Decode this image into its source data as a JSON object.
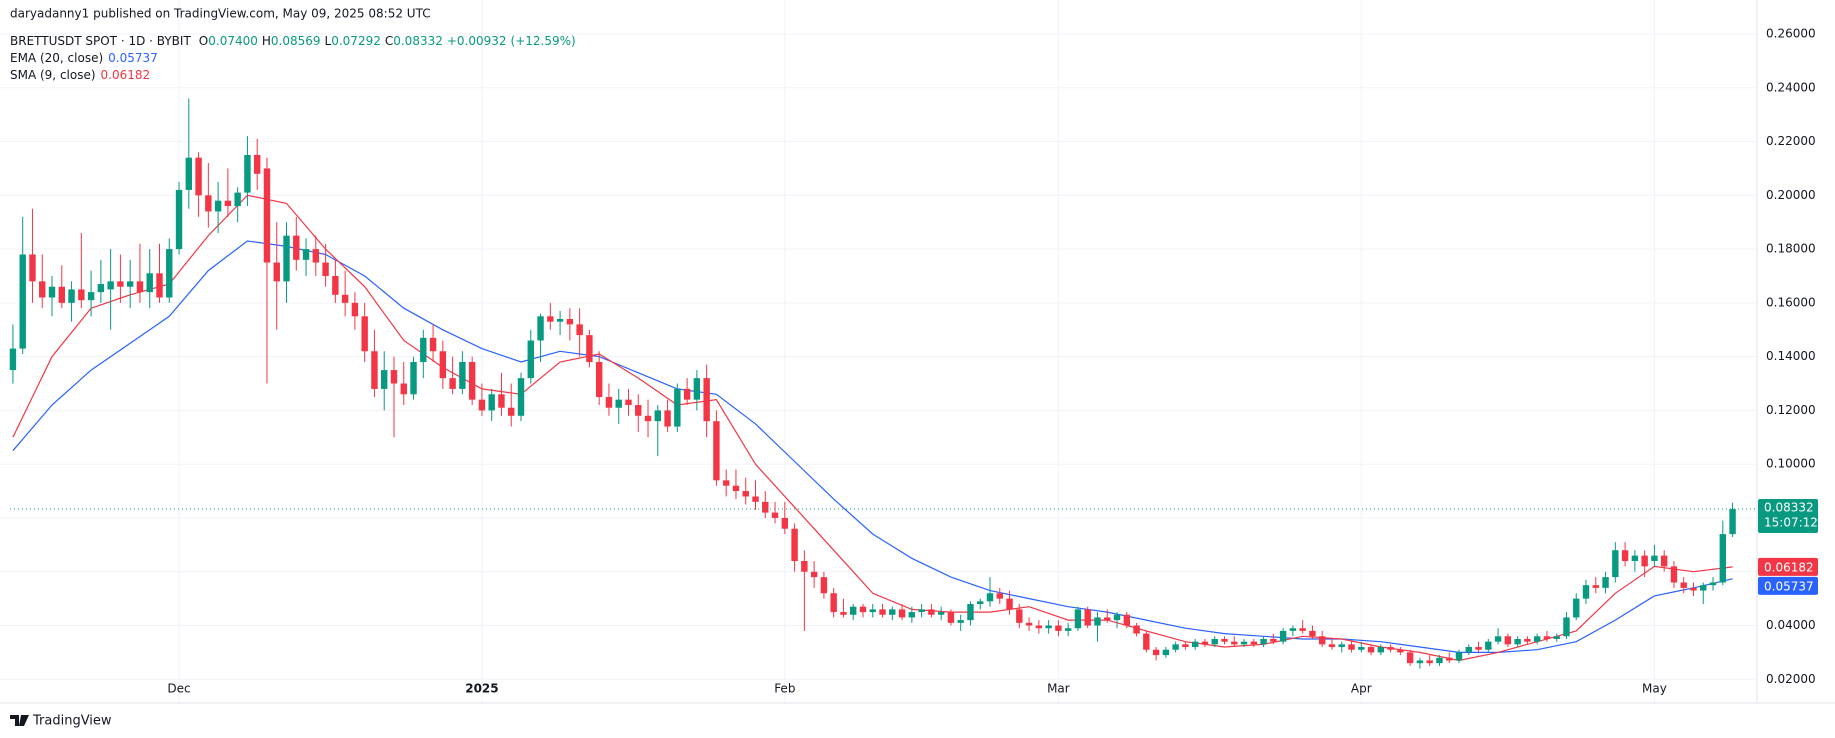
{
  "chart_data": {
    "type": "candlestick",
    "published": "daryadanny1 published on TradingView.com, May 09, 2025 08:52 UTC",
    "symbol": "BRETTUSDT SPOT · 1D · BYBIT",
    "ohlc": [
      {
        "name": "O",
        "value": 0.074,
        "label": "0.07400"
      },
      {
        "name": "H",
        "value": 0.08569,
        "label": "0.08569"
      },
      {
        "name": "L",
        "value": 0.07292,
        "label": "0.07292"
      },
      {
        "name": "C",
        "value": 0.08332,
        "label": "0.08332"
      }
    ],
    "change": {
      "value": 0.00932,
      "label": "+0.00932"
    },
    "change_pct": {
      "value": 12.59,
      "label": "(+12.59%)"
    },
    "up_color": "#089981",
    "down_color": "#f23645",
    "candles": [
      [
        0.135,
        0.152,
        0.13,
        0.143
      ],
      [
        0.143,
        0.192,
        0.141,
        0.178
      ],
      [
        0.178,
        0.195,
        0.16,
        0.168
      ],
      [
        0.168,
        0.178,
        0.158,
        0.162
      ],
      [
        0.162,
        0.17,
        0.155,
        0.166
      ],
      [
        0.166,
        0.174,
        0.158,
        0.16
      ],
      [
        0.16,
        0.168,
        0.153,
        0.165
      ],
      [
        0.165,
        0.186,
        0.158,
        0.161
      ],
      [
        0.161,
        0.172,
        0.155,
        0.164
      ],
      [
        0.164,
        0.176,
        0.16,
        0.167
      ],
      [
        0.165,
        0.18,
        0.15,
        0.168
      ],
      [
        0.168,
        0.178,
        0.16,
        0.166
      ],
      [
        0.166,
        0.176,
        0.158,
        0.168
      ],
      [
        0.168,
        0.182,
        0.16,
        0.164
      ],
      [
        0.164,
        0.18,
        0.158,
        0.171
      ],
      [
        0.171,
        0.182,
        0.16,
        0.162
      ],
      [
        0.162,
        0.184,
        0.16,
        0.18
      ],
      [
        0.18,
        0.205,
        0.178,
        0.202
      ],
      [
        0.202,
        0.236,
        0.195,
        0.214
      ],
      [
        0.214,
        0.216,
        0.192,
        0.2
      ],
      [
        0.2,
        0.212,
        0.188,
        0.194
      ],
      [
        0.194,
        0.205,
        0.186,
        0.198
      ],
      [
        0.198,
        0.21,
        0.192,
        0.196
      ],
      [
        0.196,
        0.203,
        0.19,
        0.201
      ],
      [
        0.201,
        0.222,
        0.196,
        0.215
      ],
      [
        0.215,
        0.221,
        0.202,
        0.208
      ],
      [
        0.21,
        0.214,
        0.13,
        0.175
      ],
      [
        0.175,
        0.19,
        0.15,
        0.168
      ],
      [
        0.168,
        0.19,
        0.16,
        0.185
      ],
      [
        0.185,
        0.192,
        0.172,
        0.176
      ],
      [
        0.176,
        0.184,
        0.17,
        0.18
      ],
      [
        0.18,
        0.185,
        0.17,
        0.175
      ],
      [
        0.175,
        0.182,
        0.166,
        0.17
      ],
      [
        0.17,
        0.176,
        0.16,
        0.163
      ],
      [
        0.163,
        0.172,
        0.155,
        0.16
      ],
      [
        0.16,
        0.164,
        0.15,
        0.155
      ],
      [
        0.155,
        0.16,
        0.138,
        0.142
      ],
      [
        0.142,
        0.15,
        0.125,
        0.128
      ],
      [
        0.128,
        0.142,
        0.12,
        0.135
      ],
      [
        0.135,
        0.14,
        0.11,
        0.13
      ],
      [
        0.13,
        0.138,
        0.122,
        0.126
      ],
      [
        0.126,
        0.14,
        0.124,
        0.138
      ],
      [
        0.138,
        0.15,
        0.132,
        0.147
      ],
      [
        0.147,
        0.152,
        0.138,
        0.142
      ],
      [
        0.142,
        0.146,
        0.128,
        0.132
      ],
      [
        0.132,
        0.14,
        0.126,
        0.128
      ],
      [
        0.128,
        0.142,
        0.126,
        0.138
      ],
      [
        0.138,
        0.14,
        0.122,
        0.124
      ],
      [
        0.124,
        0.13,
        0.118,
        0.12
      ],
      [
        0.12,
        0.128,
        0.116,
        0.126
      ],
      [
        0.126,
        0.134,
        0.118,
        0.121
      ],
      [
        0.121,
        0.13,
        0.114,
        0.118
      ],
      [
        0.118,
        0.134,
        0.116,
        0.132
      ],
      [
        0.132,
        0.15,
        0.13,
        0.146
      ],
      [
        0.146,
        0.156,
        0.138,
        0.155
      ],
      [
        0.155,
        0.16,
        0.15,
        0.153
      ],
      [
        0.153,
        0.157,
        0.148,
        0.154
      ],
      [
        0.154,
        0.158,
        0.146,
        0.152
      ],
      [
        0.152,
        0.158,
        0.14,
        0.148
      ],
      [
        0.148,
        0.15,
        0.136,
        0.138
      ],
      [
        0.138,
        0.142,
        0.122,
        0.125
      ],
      [
        0.125,
        0.13,
        0.118,
        0.121
      ],
      [
        0.121,
        0.128,
        0.115,
        0.124
      ],
      [
        0.124,
        0.128,
        0.118,
        0.122
      ],
      [
        0.122,
        0.126,
        0.112,
        0.118
      ],
      [
        0.118,
        0.124,
        0.11,
        0.116
      ],
      [
        0.116,
        0.122,
        0.103,
        0.12
      ],
      [
        0.12,
        0.124,
        0.112,
        0.114
      ],
      [
        0.114,
        0.13,
        0.112,
        0.128
      ],
      [
        0.128,
        0.132,
        0.122,
        0.124
      ],
      [
        0.124,
        0.135,
        0.12,
        0.132
      ],
      [
        0.132,
        0.137,
        0.11,
        0.116
      ],
      [
        0.116,
        0.12,
        0.092,
        0.094
      ],
      [
        0.094,
        0.098,
        0.088,
        0.092
      ],
      [
        0.092,
        0.098,
        0.087,
        0.09
      ],
      [
        0.09,
        0.095,
        0.085,
        0.088
      ],
      [
        0.088,
        0.094,
        0.083,
        0.086
      ],
      [
        0.086,
        0.09,
        0.08,
        0.082
      ],
      [
        0.082,
        0.086,
        0.078,
        0.08
      ],
      [
        0.08,
        0.086,
        0.074,
        0.076
      ],
      [
        0.076,
        0.078,
        0.06,
        0.064
      ],
      [
        0.064,
        0.068,
        0.038,
        0.06
      ],
      [
        0.06,
        0.064,
        0.054,
        0.058
      ],
      [
        0.058,
        0.06,
        0.05,
        0.052
      ],
      [
        0.052,
        0.054,
        0.043,
        0.045
      ],
      [
        0.045,
        0.05,
        0.043,
        0.044
      ],
      [
        0.044,
        0.048,
        0.042,
        0.047
      ],
      [
        0.047,
        0.048,
        0.043,
        0.045
      ],
      [
        0.045,
        0.048,
        0.043,
        0.046
      ],
      [
        0.046,
        0.048,
        0.043,
        0.044
      ],
      [
        0.044,
        0.047,
        0.042,
        0.046
      ],
      [
        0.046,
        0.048,
        0.042,
        0.043
      ],
      [
        0.043,
        0.047,
        0.041,
        0.045
      ],
      [
        0.045,
        0.048,
        0.043,
        0.046
      ],
      [
        0.046,
        0.048,
        0.043,
        0.044
      ],
      [
        0.044,
        0.047,
        0.042,
        0.045
      ],
      [
        0.045,
        0.046,
        0.04,
        0.041
      ],
      [
        0.041,
        0.044,
        0.038,
        0.042
      ],
      [
        0.042,
        0.049,
        0.04,
        0.048
      ],
      [
        0.048,
        0.05,
        0.046,
        0.049
      ],
      [
        0.049,
        0.058,
        0.047,
        0.052
      ],
      [
        0.052,
        0.054,
        0.048,
        0.05
      ],
      [
        0.05,
        0.053,
        0.044,
        0.046
      ],
      [
        0.046,
        0.048,
        0.039,
        0.041
      ],
      [
        0.041,
        0.043,
        0.038,
        0.04
      ],
      [
        0.04,
        0.042,
        0.037,
        0.039
      ],
      [
        0.039,
        0.042,
        0.037,
        0.04
      ],
      [
        0.04,
        0.042,
        0.036,
        0.038
      ],
      [
        0.038,
        0.041,
        0.036,
        0.039
      ],
      [
        0.039,
        0.047,
        0.038,
        0.046
      ],
      [
        0.046,
        0.047,
        0.039,
        0.04
      ],
      [
        0.04,
        0.045,
        0.034,
        0.043
      ],
      [
        0.043,
        0.046,
        0.041,
        0.042
      ],
      [
        0.042,
        0.045,
        0.039,
        0.044
      ],
      [
        0.044,
        0.045,
        0.039,
        0.04
      ],
      [
        0.04,
        0.041,
        0.036,
        0.037
      ],
      [
        0.037,
        0.038,
        0.03,
        0.031
      ],
      [
        0.031,
        0.032,
        0.027,
        0.029
      ],
      [
        0.029,
        0.032,
        0.028,
        0.031
      ],
      [
        0.031,
        0.034,
        0.03,
        0.033
      ],
      [
        0.033,
        0.034,
        0.031,
        0.032
      ],
      [
        0.032,
        0.035,
        0.031,
        0.034
      ],
      [
        0.034,
        0.035,
        0.032,
        0.033
      ],
      [
        0.033,
        0.036,
        0.032,
        0.035
      ],
      [
        0.035,
        0.036,
        0.033,
        0.034
      ],
      [
        0.034,
        0.036,
        0.032,
        0.033
      ],
      [
        0.033,
        0.035,
        0.032,
        0.034
      ],
      [
        0.034,
        0.035,
        0.032,
        0.033
      ],
      [
        0.033,
        0.036,
        0.032,
        0.035
      ],
      [
        0.035,
        0.037,
        0.033,
        0.034
      ],
      [
        0.034,
        0.039,
        0.033,
        0.038
      ],
      [
        0.038,
        0.04,
        0.036,
        0.039
      ],
      [
        0.039,
        0.042,
        0.037,
        0.038
      ],
      [
        0.038,
        0.04,
        0.035,
        0.036
      ],
      [
        0.036,
        0.038,
        0.032,
        0.033
      ],
      [
        0.033,
        0.035,
        0.031,
        0.032
      ],
      [
        0.032,
        0.034,
        0.03,
        0.033
      ],
      [
        0.033,
        0.034,
        0.03,
        0.031
      ],
      [
        0.031,
        0.034,
        0.03,
        0.032
      ],
      [
        0.032,
        0.033,
        0.029,
        0.03
      ],
      [
        0.03,
        0.033,
        0.029,
        0.032
      ],
      [
        0.032,
        0.033,
        0.03,
        0.031
      ],
      [
        0.031,
        0.032,
        0.029,
        0.03
      ],
      [
        0.03,
        0.031,
        0.025,
        0.026
      ],
      [
        0.026,
        0.028,
        0.024,
        0.027
      ],
      [
        0.027,
        0.029,
        0.025,
        0.026
      ],
      [
        0.026,
        0.029,
        0.025,
        0.028
      ],
      [
        0.028,
        0.03,
        0.026,
        0.027
      ],
      [
        0.027,
        0.031,
        0.026,
        0.03
      ],
      [
        0.03,
        0.033,
        0.029,
        0.032
      ],
      [
        0.032,
        0.034,
        0.03,
        0.031
      ],
      [
        0.031,
        0.035,
        0.03,
        0.034
      ],
      [
        0.034,
        0.039,
        0.033,
        0.036
      ],
      [
        0.036,
        0.037,
        0.032,
        0.033
      ],
      [
        0.033,
        0.036,
        0.032,
        0.035
      ],
      [
        0.035,
        0.036,
        0.033,
        0.034
      ],
      [
        0.034,
        0.037,
        0.033,
        0.036
      ],
      [
        0.036,
        0.038,
        0.034,
        0.035
      ],
      [
        0.035,
        0.037,
        0.034,
        0.036
      ],
      [
        0.036,
        0.045,
        0.035,
        0.043
      ],
      [
        0.043,
        0.052,
        0.042,
        0.05
      ],
      [
        0.05,
        0.057,
        0.048,
        0.055
      ],
      [
        0.055,
        0.058,
        0.052,
        0.054
      ],
      [
        0.054,
        0.06,
        0.052,
        0.058
      ],
      [
        0.058,
        0.071,
        0.056,
        0.068
      ],
      [
        0.068,
        0.071,
        0.062,
        0.064
      ],
      [
        0.064,
        0.068,
        0.06,
        0.066
      ],
      [
        0.066,
        0.068,
        0.058,
        0.062
      ],
      [
        0.064,
        0.07,
        0.062,
        0.066
      ],
      [
        0.066,
        0.068,
        0.06,
        0.062
      ],
      [
        0.062,
        0.064,
        0.054,
        0.056
      ],
      [
        0.056,
        0.058,
        0.052,
        0.054
      ],
      [
        0.054,
        0.056,
        0.051,
        0.053
      ],
      [
        0.053,
        0.056,
        0.048,
        0.055
      ],
      [
        0.055,
        0.058,
        0.053,
        0.056
      ],
      [
        0.056,
        0.079,
        0.055,
        0.074
      ],
      [
        0.074,
        0.08569,
        0.07292,
        0.08332
      ]
    ],
    "series": [
      {
        "name": "EMA (20, close)",
        "color": "#2962ff",
        "x": [
          0,
          4,
          8,
          12,
          16,
          20,
          24,
          28,
          32,
          36,
          40,
          44,
          48,
          52,
          56,
          60,
          64,
          68,
          72,
          76,
          80,
          84,
          88,
          92,
          96,
          100,
          104,
          108,
          112,
          116,
          120,
          124,
          128,
          132,
          136,
          140,
          144,
          148,
          152,
          156,
          160,
          164,
          168,
          172,
          176
        ],
        "values": [
          0.105,
          0.122,
          0.135,
          0.145,
          0.155,
          0.172,
          0.183,
          0.181,
          0.178,
          0.17,
          0.158,
          0.15,
          0.143,
          0.138,
          0.142,
          0.14,
          0.134,
          0.128,
          0.126,
          0.115,
          0.101,
          0.087,
          0.074,
          0.065,
          0.058,
          0.053,
          0.05,
          0.047,
          0.045,
          0.042,
          0.039,
          0.037,
          0.036,
          0.035,
          0.035,
          0.034,
          0.032,
          0.03,
          0.03,
          0.031,
          0.034,
          0.042,
          0.051,
          0.054,
          0.05737
        ],
        "legend_value": {
          "value": 0.05737,
          "label": "0.05737"
        }
      },
      {
        "name": "SMA (9, close)",
        "color": "#f23645",
        "x": [
          0,
          4,
          8,
          12,
          16,
          20,
          24,
          28,
          32,
          36,
          40,
          44,
          48,
          52,
          56,
          60,
          64,
          68,
          72,
          76,
          80,
          84,
          88,
          92,
          96,
          100,
          104,
          108,
          112,
          116,
          120,
          124,
          128,
          132,
          136,
          140,
          144,
          148,
          152,
          156,
          160,
          164,
          168,
          172,
          176
        ],
        "values": [
          0.11,
          0.14,
          0.158,
          0.163,
          0.167,
          0.185,
          0.2,
          0.197,
          0.18,
          0.166,
          0.146,
          0.136,
          0.128,
          0.126,
          0.138,
          0.141,
          0.132,
          0.122,
          0.124,
          0.1,
          0.084,
          0.068,
          0.052,
          0.046,
          0.045,
          0.045,
          0.047,
          0.042,
          0.042,
          0.038,
          0.034,
          0.032,
          0.033,
          0.036,
          0.035,
          0.032,
          0.03,
          0.027,
          0.03,
          0.034,
          0.038,
          0.052,
          0.062,
          0.06,
          0.06182
        ],
        "legend_value": {
          "value": 0.06182,
          "label": "0.06182"
        }
      }
    ],
    "xlim": [
      -0.3,
      178.5
    ],
    "xticks": [
      {
        "value": 17,
        "label": "Dec"
      },
      {
        "value": 48,
        "label": "2025"
      },
      {
        "value": 79,
        "label": "Feb"
      },
      {
        "value": 107,
        "label": "Mar"
      },
      {
        "value": 138,
        "label": "Apr"
      },
      {
        "value": 168,
        "label": "May"
      }
    ],
    "ylim": [
      0.0123,
      0.2652
    ],
    "yticks": [
      {
        "value": 0.02,
        "label": "0.02000"
      },
      {
        "value": 0.04,
        "label": "0.04000"
      },
      {
        "value": 0.06,
        "label": "0.06000"
      },
      {
        "value": 0.08,
        "label": "0.08000"
      },
      {
        "value": 0.1,
        "label": "0.10000"
      },
      {
        "value": 0.12,
        "label": "0.12000"
      },
      {
        "value": 0.14,
        "label": "0.14000"
      },
      {
        "value": 0.16,
        "label": "0.16000"
      },
      {
        "value": 0.18,
        "label": "0.18000"
      },
      {
        "value": 0.2,
        "label": "0.20000"
      },
      {
        "value": 0.22,
        "label": "0.22000"
      },
      {
        "value": 0.24,
        "label": "0.24000"
      },
      {
        "value": 0.26,
        "label": "0.26000"
      }
    ],
    "last_price": {
      "value": 0.08332,
      "label": "0.08332"
    },
    "countdown": "15:07:12",
    "grid": true,
    "branding": "TradingView"
  }
}
